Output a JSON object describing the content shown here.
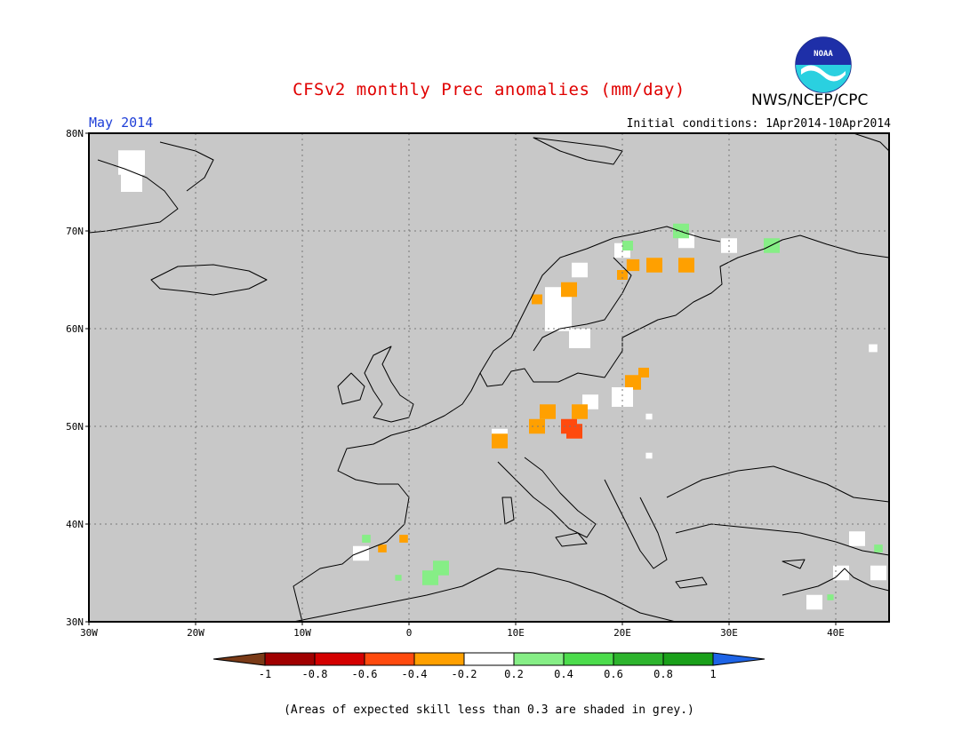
{
  "header": {
    "title": "CFSv2 monthly Prec anomalies (mm/day)",
    "agency": "NWS/NCEP/CPC",
    "month": "May 2014",
    "initial_conditions": "Initial conditions: 1Apr2014-10Apr2014"
  },
  "logo": {
    "text": "NOAA",
    "colors": {
      "top": "#1e2fa8",
      "bottom": "#2ad0e0"
    }
  },
  "map": {
    "lon_range": [
      -30,
      45
    ],
    "lat_range": [
      30,
      80
    ],
    "background_color": "#c8c8c8",
    "grid": "dotted",
    "lat_labels": [
      "80N",
      "70N",
      "60N",
      "50N",
      "40N",
      "30N"
    ],
    "lon_labels": [
      "30W",
      "20W",
      "10W",
      "0",
      "10E",
      "20E",
      "30E",
      "40E"
    ],
    "anomaly_cells": [
      {
        "lon": -26,
        "lat": 77,
        "value": 0,
        "size": 2.5
      },
      {
        "lon": -26,
        "lat": 75,
        "value": 0,
        "size": 2
      },
      {
        "lon": 14,
        "lat": 63,
        "value": 0,
        "size": 2.5
      },
      {
        "lon": 14,
        "lat": 61,
        "value": 0,
        "size": 2.5
      },
      {
        "lon": 16,
        "lat": 59,
        "value": 0,
        "size": 2
      },
      {
        "lon": 16,
        "lat": 66,
        "value": 0,
        "size": 1.5
      },
      {
        "lon": 20,
        "lat": 68,
        "value": 0,
        "size": 1.5
      },
      {
        "lon": 26,
        "lat": 69,
        "value": 0,
        "size": 1.5
      },
      {
        "lon": 30,
        "lat": 68.5,
        "value": 0,
        "size": 1.5
      },
      {
        "lon": 12,
        "lat": 63,
        "value": -0.3,
        "size": 1
      },
      {
        "lon": 15,
        "lat": 64,
        "value": -0.3,
        "size": 1.5
      },
      {
        "lon": 21,
        "lat": 66.5,
        "value": -0.3,
        "size": 1.2
      },
      {
        "lon": 23,
        "lat": 66.5,
        "value": -0.3,
        "size": 1.5
      },
      {
        "lon": 26,
        "lat": 66.5,
        "value": -0.3,
        "size": 1.5
      },
      {
        "lon": 20,
        "lat": 65.5,
        "value": -0.3,
        "size": 1
      },
      {
        "lon": 20.5,
        "lat": 68.5,
        "value": 0.3,
        "size": 1
      },
      {
        "lon": 25.5,
        "lat": 70,
        "value": 0.3,
        "size": 1.5
      },
      {
        "lon": 34,
        "lat": 68.5,
        "value": 0.3,
        "size": 1.5
      },
      {
        "lon": 21,
        "lat": 54.5,
        "value": -0.3,
        "size": 1.5
      },
      {
        "lon": 22,
        "lat": 55.5,
        "value": -0.3,
        "size": 1
      },
      {
        "lon": 20,
        "lat": 53,
        "value": 0,
        "size": 2
      },
      {
        "lon": 17,
        "lat": 52.5,
        "value": 0,
        "size": 1.5
      },
      {
        "lon": 22.5,
        "lat": 51,
        "value": 0,
        "size": 0.6
      },
      {
        "lon": 13,
        "lat": 51.5,
        "value": -0.3,
        "size": 1.5
      },
      {
        "lon": 16,
        "lat": 51.5,
        "value": -0.3,
        "size": 1.5
      },
      {
        "lon": 12,
        "lat": 50,
        "value": -0.3,
        "size": 1.5
      },
      {
        "lon": 15,
        "lat": 50,
        "value": -0.5,
        "size": 1.5
      },
      {
        "lon": 15.5,
        "lat": 49.5,
        "value": -0.5,
        "size": 1.5
      },
      {
        "lon": 8.5,
        "lat": 49,
        "value": 0,
        "size": 1.5
      },
      {
        "lon": 8.5,
        "lat": 48.5,
        "value": -0.3,
        "size": 1.5
      },
      {
        "lon": 22.5,
        "lat": 47,
        "value": 0,
        "size": 0.6
      },
      {
        "lon": -4,
        "lat": 38.5,
        "value": 0.3,
        "size": 0.8
      },
      {
        "lon": -2.5,
        "lat": 37.5,
        "value": -0.3,
        "size": 0.8
      },
      {
        "lon": -0.5,
        "lat": 38.5,
        "value": -0.3,
        "size": 0.8
      },
      {
        "lon": -4.5,
        "lat": 37,
        "value": 0,
        "size": 1.5
      },
      {
        "lon": 3,
        "lat": 35.5,
        "value": 0.3,
        "size": 1.5
      },
      {
        "lon": 2,
        "lat": 34.5,
        "value": 0.3,
        "size": 1.5
      },
      {
        "lon": -1,
        "lat": 34.5,
        "value": 0.3,
        "size": 0.6
      },
      {
        "lon": 42,
        "lat": 38.5,
        "value": 0,
        "size": 1.5
      },
      {
        "lon": 44,
        "lat": 37.5,
        "value": 0.3,
        "size": 0.8
      },
      {
        "lon": 40.5,
        "lat": 35,
        "value": 0,
        "size": 1.5
      },
      {
        "lon": 44,
        "lat": 35,
        "value": 0,
        "size": 1.5
      },
      {
        "lon": 38,
        "lat": 32,
        "value": 0,
        "size": 1.5
      },
      {
        "lon": 39.5,
        "lat": 32.5,
        "value": 0.3,
        "size": 0.6
      },
      {
        "lon": 43.5,
        "lat": 58,
        "value": 0,
        "size": 0.8
      }
    ]
  },
  "colorbar": {
    "labels": [
      "-1",
      "-0.8",
      "-0.6",
      "-0.4",
      "-0.2",
      "0.2",
      "0.4",
      "0.6",
      "0.8",
      "1"
    ],
    "colors": [
      "#1e7a1e",
      "#a00000",
      "#d40000",
      "#ff4a0e",
      "#ffa000",
      "#ffffff",
      "#86ee86",
      "#4cdc4c",
      "#2db42d",
      "#1aa01a"
    ],
    "under_color": "#7a3a17",
    "over_color": "#1e64e6"
  },
  "footnote": "(Areas of expected skill less than 0.3 are shaded in grey.)"
}
